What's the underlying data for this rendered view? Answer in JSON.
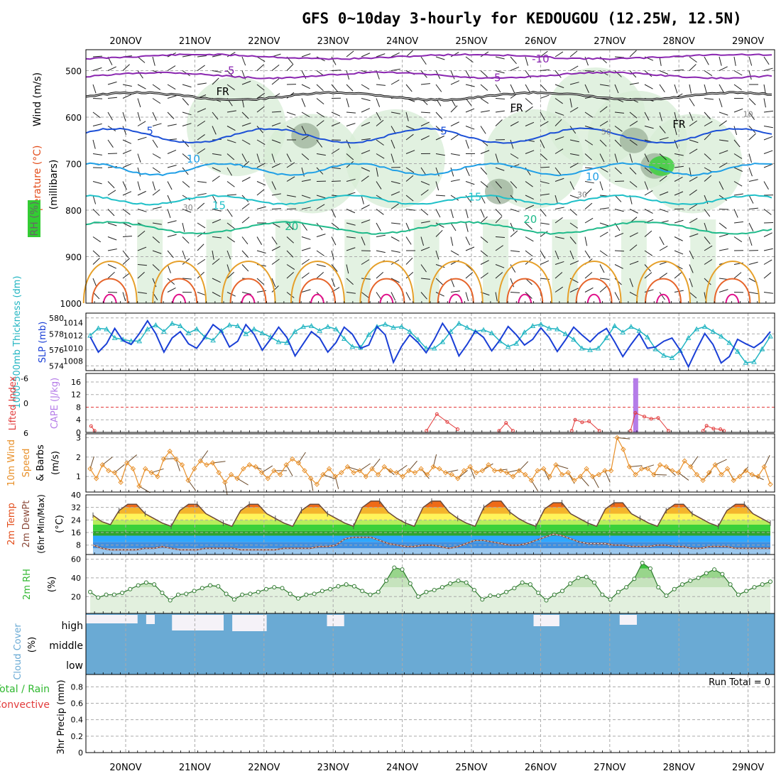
{
  "title": "GFS 0~10day 3-hourly for KEDOUGOU (12.25W, 12.5N)",
  "dates": [
    "20NOV",
    "21NOV",
    "22NOV",
    "23NOV",
    "24NOV",
    "25NOV",
    "26NOV",
    "27NOV",
    "28NOV",
    "29NOV"
  ],
  "colors": {
    "slp": "#1a3fd6",
    "thickness": "#22b5c2",
    "lifted": "#e23b3b",
    "cape": "#b57ce8",
    "wind10": "#e8902a",
    "temp": "#e34d1b",
    "dewpt": "#8b4a3a",
    "rh": "#33b833",
    "cloud": "#6aaad4",
    "cloud_clear": "#f5f2f8",
    "iso_neg10": "#8a26b0",
    "iso_5": "#1b4fd6",
    "iso_10": "#1f9fe6",
    "iso_15": "#1fc0c8",
    "iso_20": "#1fba8a",
    "iso_warm": "#e6a02a",
    "iso_hot": "#e6642a"
  },
  "panels": {
    "upper": {
      "ylabel_wind": "Wind (m/s)",
      "ylabel_temp": "Temperature (°C)",
      "ylabel_rh": "RH (%)",
      "ylabel_unit": "(millibars)",
      "type": "contour",
      "pressure_ticks": [
        "500",
        "600",
        "700",
        "800",
        "900",
        "1000"
      ],
      "contour_labels": [
        {
          "text": "-10",
          "day": 6.0,
          "p": 475,
          "color": "iso_neg10"
        },
        {
          "text": "-5",
          "day": 1.5,
          "p": 500,
          "color": "iso_neg10"
        },
        {
          "text": "-5",
          "day": 5.35,
          "p": 515,
          "color": "iso_neg10"
        },
        {
          "text": "FR",
          "day": 1.4,
          "p": 545,
          "color": "black"
        },
        {
          "text": "FR",
          "day": 5.65,
          "p": 580,
          "color": "black"
        },
        {
          "text": "FR",
          "day": 8.0,
          "p": 615,
          "color": "black"
        },
        {
          "text": "5",
          "day": 0.35,
          "p": 630,
          "color": "iso_5"
        },
        {
          "text": "5",
          "day": 4.6,
          "p": 630,
          "color": "iso_5"
        },
        {
          "text": "10",
          "day": 0.98,
          "p": 690,
          "color": "iso_10"
        },
        {
          "text": "10",
          "day": 6.75,
          "p": 728,
          "color": "iso_10"
        },
        {
          "text": "15",
          "day": 1.35,
          "p": 790,
          "color": "iso_15"
        },
        {
          "text": "15",
          "day": 5.05,
          "p": 772,
          "color": "iso_15"
        },
        {
          "text": "20",
          "day": 2.4,
          "p": 835,
          "color": "iso_20"
        },
        {
          "text": "20",
          "day": 5.85,
          "p": 820,
          "color": "iso_20"
        },
        {
          "text": "30",
          "day": 0.9,
          "p": 792,
          "color": "gray"
        },
        {
          "text": "30",
          "day": 6.6,
          "p": 765,
          "color": "gray"
        },
        {
          "text": "50",
          "day": 6.95,
          "p": 630,
          "color": "gray"
        },
        {
          "text": "10",
          "day": 9.0,
          "p": 592,
          "color": "gray"
        }
      ]
    },
    "slp_thk": {
      "ylabel_left": "1000-500mb Thickness (dm)",
      "ylabel_right": "SLP (mb)",
      "left_ticks": [
        "580",
        "578",
        "576",
        "574"
      ],
      "right_ticks": [
        "1014",
        "1012",
        "1010",
        "1008"
      ],
      "lim_left": [
        573.4,
        580.6
      ],
      "lim_right": [
        1006.5,
        1015.5
      ]
    },
    "cape_li": {
      "ylabel_left": "Lifted Index",
      "ylabel_right": "CAPE (J/kg)",
      "left_ticks": [
        "-6",
        "0",
        "6"
      ],
      "right_ticks": [
        "16",
        "12",
        "8",
        "4",
        "0"
      ],
      "lim_right": [
        0,
        18.7
      ]
    },
    "wind10": {
      "ylabel": "10m Wind Speed & Barbs (m/s)",
      "ticks": [
        "3",
        "2",
        "1"
      ],
      "lim": [
        0.2,
        3.2
      ]
    },
    "temp": {
      "ylabel": "2m Temp 2m DewPt (6hr Min/Max) (°C)",
      "ticks": [
        "40",
        "32",
        "24",
        "16",
        "8"
      ],
      "lim": [
        2,
        40
      ]
    },
    "rh": {
      "ylabel": "2m RH (%)",
      "ticks": [
        "60",
        "40",
        "20"
      ],
      "lim": [
        2,
        65
      ]
    },
    "cloud": {
      "ylabel": "Cloud Cover (%)",
      "levels": [
        "high",
        "middle",
        "low"
      ]
    },
    "precip": {
      "ylabel": "3hr Precip (mm)",
      "legend_total": "Total / Rain",
      "legend_conv": "Convective",
      "ticks": [
        "0.8",
        "0.6",
        "0.4",
        "0.2",
        "0"
      ],
      "lim": [
        0,
        0.95
      ],
      "run_total": "Run Total = 0"
    }
  },
  "chart_data": [
    {
      "type": "line",
      "title": "1000-500mb Thickness / SLP",
      "series": [
        {
          "name": "1000-500mb Thickness (dm)",
          "axis": "left",
          "values": [
            577.8,
            578.7,
            578.6,
            577.5,
            577.3,
            577.1,
            577.1,
            578.6,
            579.1,
            578.3,
            579.3,
            579.0,
            578.1,
            578.6,
            577.6,
            577.2,
            578.4,
            579.1,
            579.0,
            578.0,
            578.6,
            578.1,
            577.6,
            577.0,
            576.9,
            578.3,
            578.9,
            579.0,
            578.4,
            578.9,
            578.6,
            577.4,
            576.4,
            576.3,
            577.9,
            578.9,
            579.2,
            578.8,
            578.9,
            578.3,
            577.3,
            576.2,
            576.2,
            577.0,
            578.3,
            579.3,
            578.8,
            578.3,
            578.5,
            578.1,
            577.1,
            576.4,
            576.8,
            578.2,
            579.0,
            579.2,
            578.7,
            578.6,
            578.0,
            577.3,
            576.2,
            576.0,
            576.2,
            577.5,
            579.0,
            578.2,
            578.9,
            578.4,
            577.6,
            576.1,
            575.3,
            575.0,
            575.9,
            577.5,
            578.6,
            578.9,
            578.3,
            577.7,
            576.9,
            575.8,
            574.4,
            574.5,
            576.1,
            577.7
          ]
        },
        {
          "name": "SLP (mb)",
          "axis": "right",
          "values": [
            1011.8,
            1009.4,
            1010.7,
            1013.1,
            1011.2,
            1010.6,
            1012.3,
            1014.3,
            1012.3,
            1009.4,
            1011.6,
            1012.6,
            1010.7,
            1010.0,
            1011.7,
            1013.7,
            1012.7,
            1010.2,
            1011.1,
            1013.7,
            1012.2,
            1009.7,
            1011.4,
            1013.3,
            1011.7,
            1008.8,
            1010.7,
            1012.6,
            1011.6,
            1009.4,
            1010.9,
            1013.3,
            1012.2,
            1010.0,
            1010.5,
            1013.4,
            1012.1,
            1007.8,
            1010.3,
            1012.1,
            1010.9,
            1009.3,
            1011.4,
            1013.9,
            1012.0,
            1008.8,
            1010.6,
            1012.7,
            1011.7,
            1009.6,
            1011.3,
            1013.4,
            1012.1,
            1010.5,
            1011.4,
            1013.2,
            1011.7,
            1009.5,
            1011.3,
            1013.3,
            1012.1,
            1011.0,
            1012.3,
            1013.1,
            1011.0,
            1008.7,
            1010.6,
            1012.3,
            1010.0,
            1010.2,
            1011.1,
            1011.6,
            1009.7,
            1007.1,
            1009.8,
            1012.3,
            1010.6,
            1007.7,
            1008.7,
            1011.4,
            1010.7,
            1010.1,
            1011.0,
            1012.6
          ]
        }
      ]
    },
    {
      "type": "bar",
      "title": "CAPE / Lifted Index",
      "x_days": [
        7.37
      ],
      "values": [
        17.2
      ],
      "name": "CAPE (J/kg)",
      "lifted_index_lines": [
        {
          "x_days": [
            -0.5,
            -0.45
          ],
          "values": [
            2.0,
            0.5
          ]
        },
        {
          "x_days": [
            4.35,
            4.5,
            4.65,
            4.8
          ],
          "values": [
            0.5,
            5.8,
            3.3,
            1.0
          ]
        },
        {
          "x_days": [
            5.4,
            5.5,
            5.6
          ],
          "values": [
            0.5,
            3.0,
            0.5
          ]
        },
        {
          "x_days": [
            6.45,
            6.5,
            6.6,
            6.7,
            6.85
          ],
          "values": [
            0.5,
            4.0,
            3.2,
            3.5,
            0.5
          ]
        },
        {
          "x_days": [
            7.3,
            7.37,
            7.5,
            7.6,
            7.7,
            7.85
          ],
          "values": [
            0.5,
            6.2,
            5.0,
            4.3,
            4.6,
            0.5
          ]
        },
        {
          "x_days": [
            8.35,
            8.4,
            8.5,
            8.6,
            8.65
          ],
          "values": [
            0.5,
            2.1,
            1.2,
            1.0,
            0.5
          ]
        }
      ]
    },
    {
      "type": "line",
      "title": "10m Wind Speed",
      "name": "10m Wind Speed (m/s)",
      "values": [
        1.4,
        0.9,
        1.6,
        1.3,
        1.2,
        0.7,
        1.7,
        1.4,
        0.5,
        1.4,
        1.2,
        1.0,
        1.9,
        2.3,
        1.9,
        1.6,
        0.8,
        1.4,
        1.8,
        1.6,
        1.7,
        1.2,
        0.7,
        1.1,
        0.9,
        1.4,
        1.6,
        1.5,
        1.2,
        0.9,
        1.3,
        1.1,
        1.6,
        1.9,
        1.7,
        1.3,
        0.9,
        0.6,
        1.1,
        1.4,
        1.0,
        1.2,
        1.5,
        1.2,
        1.3,
        1.0,
        1.4,
        1.1,
        1.5,
        1.3,
        1.2,
        1.0,
        1.3,
        1.2,
        1.4,
        1.1,
        1.5,
        1.4,
        1.2,
        1.1,
        0.9,
        1.3,
        1.5,
        1.2,
        1.3,
        1.6,
        1.3,
        1.3,
        1.2,
        1.0,
        1.3,
        1.1,
        0.8,
        1.3,
        1.4,
        1.0,
        1.6,
        1.1,
        1.2,
        0.8,
        1.0,
        1.4,
        1.0,
        1.1,
        1.3,
        1.3,
        3.0,
        2.4,
        1.5,
        1.1,
        1.4,
        1.4,
        1.1,
        1.6,
        1.5,
        1.3,
        1.2,
        1.8,
        1.5,
        1.1,
        0.8,
        1.2,
        1.6,
        1.1,
        1.4,
        0.8,
        1.0,
        1.3,
        1.1,
        1.0,
        1.5,
        0.6
      ]
    },
    {
      "type": "area",
      "title": "2m Temp / 2m DewPt",
      "series": [
        {
          "name": "2m Temp (°C)",
          "values": [
            27,
            23,
            21,
            30,
            34,
            34,
            28,
            25,
            22,
            20,
            30,
            34,
            34,
            28,
            25,
            22,
            20,
            30,
            34,
            34,
            28,
            25,
            22,
            20,
            30,
            34,
            34,
            28,
            25,
            22,
            20,
            32,
            36,
            36,
            29,
            25,
            22,
            20,
            32,
            36,
            36,
            29,
            25,
            22,
            20,
            32,
            36,
            36,
            29,
            25,
            22,
            20,
            31,
            35,
            35,
            28,
            25,
            22,
            20,
            31,
            35,
            35,
            28,
            25,
            22,
            20,
            30,
            34,
            34,
            28,
            25,
            22,
            20,
            30,
            34,
            34,
            28,
            25,
            22
          ]
        },
        {
          "name": "2m DewPt (°C)",
          "values": [
            8,
            6,
            5,
            5,
            5,
            5,
            6,
            6,
            7,
            6,
            5,
            5,
            5,
            6,
            6,
            6,
            6,
            5,
            5,
            5,
            5,
            5,
            6,
            6,
            6,
            6,
            7,
            7,
            8,
            12,
            13,
            13,
            13,
            11,
            9,
            8,
            7,
            7,
            8,
            8,
            7,
            6,
            7,
            9,
            11,
            11,
            10,
            9,
            8,
            8,
            9,
            11,
            13,
            15,
            14,
            12,
            10,
            9,
            9,
            9,
            8,
            8,
            7,
            7,
            7,
            8,
            8,
            7,
            7,
            6,
            6,
            7,
            7,
            7,
            6,
            6,
            6,
            6,
            6
          ]
        }
      ]
    },
    {
      "type": "area",
      "title": "2m RH",
      "name": "2m RH (%)",
      "values": [
        25,
        19,
        22,
        22,
        24,
        28,
        32,
        35,
        33,
        24,
        16,
        22,
        23,
        26,
        29,
        32,
        31,
        23,
        17,
        22,
        23,
        25,
        28,
        30,
        29,
        23,
        18,
        22,
        23,
        26,
        28,
        31,
        33,
        31,
        26,
        22,
        25,
        37,
        51,
        49,
        34,
        20,
        25,
        27,
        30,
        34,
        37,
        35,
        27,
        17,
        21,
        21,
        25,
        29,
        35,
        33,
        24,
        16,
        22,
        26,
        34,
        40,
        41,
        35,
        22,
        17,
        25,
        30,
        39,
        56,
        50,
        30,
        21,
        28,
        33,
        37,
        40,
        45,
        49,
        44,
        33,
        22,
        26,
        30,
        33,
        36
      ]
    },
    {
      "type": "heatmap",
      "title": "Cloud Cover",
      "levels": [
        "high",
        "middle",
        "low"
      ],
      "high_clear_runs": [
        [
          0,
          6
        ],
        [
          7,
          8
        ],
        [
          10,
          16
        ],
        [
          17,
          21
        ],
        [
          28,
          30
        ],
        [
          52,
          55
        ],
        [
          62,
          64
        ]
      ]
    }
  ]
}
